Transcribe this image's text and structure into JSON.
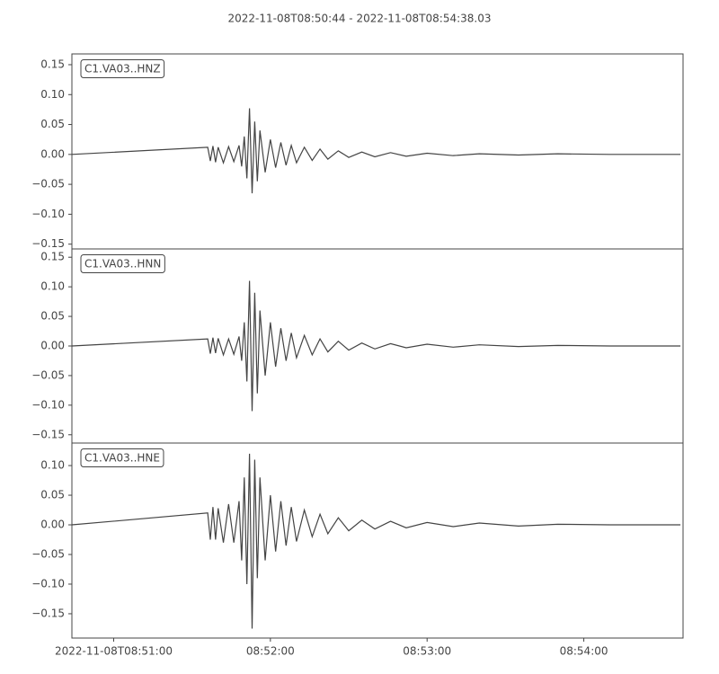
{
  "title": "2022-11-08T08:50:44  -  2022-11-08T08:54:38.03",
  "chart_data": [
    {
      "type": "line",
      "x": [
        "2022-11-08T08:50:44",
        "2022-11-08T08:51:36",
        "2022-11-08T08:51:37",
        "2022-11-08T08:51:38",
        "2022-11-08T08:51:39",
        "2022-11-08T08:51:40",
        "2022-11-08T08:51:42",
        "2022-11-08T08:51:44",
        "2022-11-08T08:51:46",
        "2022-11-08T08:51:48",
        "2022-11-08T08:51:49",
        "2022-11-08T08:51:50",
        "2022-11-08T08:51:51",
        "2022-11-08T08:51:52",
        "2022-11-08T08:51:53",
        "2022-11-08T08:51:54",
        "2022-11-08T08:51:55",
        "2022-11-08T08:51:56",
        "2022-11-08T08:51:58",
        "2022-11-08T08:52:00",
        "2022-11-08T08:52:02",
        "2022-11-08T08:52:04",
        "2022-11-08T08:52:06",
        "2022-11-08T08:52:08",
        "2022-11-08T08:52:10",
        "2022-11-08T08:52:13",
        "2022-11-08T08:52:16",
        "2022-11-08T08:52:19",
        "2022-11-08T08:52:22",
        "2022-11-08T08:52:26",
        "2022-11-08T08:52:30",
        "2022-11-08T08:52:35",
        "2022-11-08T08:52:40",
        "2022-11-08T08:52:46",
        "2022-11-08T08:52:52",
        "2022-11-08T08:53:00",
        "2022-11-08T08:53:10",
        "2022-11-08T08:53:20",
        "2022-11-08T08:53:35",
        "2022-11-08T08:53:50",
        "2022-11-08T08:54:10",
        "2022-11-08T08:54:37"
      ],
      "series": [
        {
          "name": "C1.VA03..HNZ",
          "color": "#444444",
          "values": [
            0,
            0.012,
            -0.011,
            0.014,
            -0.013,
            0.012,
            -0.014,
            0.013,
            -0.012,
            0.015,
            -0.02,
            0.03,
            -0.04,
            0.077,
            -0.065,
            0.055,
            -0.045,
            0.04,
            -0.03,
            0.025,
            -0.022,
            0.02,
            -0.018,
            0.015,
            -0.014,
            0.012,
            -0.01,
            0.009,
            -0.008,
            0.006,
            -0.005,
            0.004,
            -0.004,
            0.003,
            -0.003,
            0.002,
            -0.002,
            0.001,
            -0.001,
            0.001,
            0,
            0
          ]
        }
      ],
      "xlim": [
        "2022-11-08T08:50:44",
        "2022-11-08T08:54:38"
      ],
      "ylim": [
        -0.158,
        0.168
      ],
      "yticks": [
        {
          "value": -0.15,
          "label": "−0.15"
        },
        {
          "value": -0.1,
          "label": "−0.10"
        },
        {
          "value": -0.05,
          "label": "−0.05"
        },
        {
          "value": 0,
          "label": "0.00"
        },
        {
          "value": 0.05,
          "label": "0.05"
        },
        {
          "value": 0.1,
          "label": "0.10"
        },
        {
          "value": 0.15,
          "label": "0.15"
        }
      ]
    },
    {
      "type": "line",
      "x": [
        "2022-11-08T08:50:44",
        "2022-11-08T08:51:36",
        "2022-11-08T08:51:37",
        "2022-11-08T08:51:38",
        "2022-11-08T08:51:39",
        "2022-11-08T08:51:40",
        "2022-11-08T08:51:42",
        "2022-11-08T08:51:44",
        "2022-11-08T08:51:46",
        "2022-11-08T08:51:48",
        "2022-11-08T08:51:49",
        "2022-11-08T08:51:50",
        "2022-11-08T08:51:51",
        "2022-11-08T08:51:52",
        "2022-11-08T08:51:53",
        "2022-11-08T08:51:54",
        "2022-11-08T08:51:55",
        "2022-11-08T08:51:56",
        "2022-11-08T08:51:58",
        "2022-11-08T08:52:00",
        "2022-11-08T08:52:02",
        "2022-11-08T08:52:04",
        "2022-11-08T08:52:06",
        "2022-11-08T08:52:08",
        "2022-11-08T08:52:10",
        "2022-11-08T08:52:13",
        "2022-11-08T08:52:16",
        "2022-11-08T08:52:19",
        "2022-11-08T08:52:22",
        "2022-11-08T08:52:26",
        "2022-11-08T08:52:30",
        "2022-11-08T08:52:35",
        "2022-11-08T08:52:40",
        "2022-11-08T08:52:46",
        "2022-11-08T08:52:52",
        "2022-11-08T08:53:00",
        "2022-11-08T08:53:10",
        "2022-11-08T08:53:20",
        "2022-11-08T08:53:35",
        "2022-11-08T08:53:50",
        "2022-11-08T08:54:10",
        "2022-11-08T08:54:37"
      ],
      "series": [
        {
          "name": "C1.VA03..HNN",
          "color": "#444444",
          "values": [
            0,
            0.012,
            -0.013,
            0.014,
            -0.012,
            0.013,
            -0.015,
            0.012,
            -0.014,
            0.016,
            -0.025,
            0.04,
            -0.06,
            0.11,
            -0.11,
            0.09,
            -0.08,
            0.06,
            -0.05,
            0.04,
            -0.035,
            0.03,
            -0.025,
            0.022,
            -0.02,
            0.018,
            -0.015,
            0.012,
            -0.01,
            0.008,
            -0.007,
            0.005,
            -0.005,
            0.004,
            -0.003,
            0.003,
            -0.002,
            0.002,
            -0.001,
            0.001,
            0,
            0
          ]
        }
      ],
      "xlim": [
        "2022-11-08T08:50:44",
        "2022-11-08T08:54:38"
      ],
      "ylim": [
        -0.164,
        0.164
      ],
      "yticks": [
        {
          "value": -0.15,
          "label": "−0.15"
        },
        {
          "value": -0.1,
          "label": "−0.10"
        },
        {
          "value": -0.05,
          "label": "−0.05"
        },
        {
          "value": 0,
          "label": "0.00"
        },
        {
          "value": 0.05,
          "label": "0.05"
        },
        {
          "value": 0.1,
          "label": "0.10"
        },
        {
          "value": 0.15,
          "label": "0.15"
        }
      ]
    },
    {
      "type": "line",
      "x": [
        "2022-11-08T08:50:44",
        "2022-11-08T08:51:36",
        "2022-11-08T08:51:37",
        "2022-11-08T08:51:38",
        "2022-11-08T08:51:39",
        "2022-11-08T08:51:40",
        "2022-11-08T08:51:42",
        "2022-11-08T08:51:44",
        "2022-11-08T08:51:46",
        "2022-11-08T08:51:48",
        "2022-11-08T08:51:49",
        "2022-11-08T08:51:50",
        "2022-11-08T08:51:51",
        "2022-11-08T08:51:52",
        "2022-11-08T08:51:53",
        "2022-11-08T08:51:54",
        "2022-11-08T08:51:55",
        "2022-11-08T08:51:56",
        "2022-11-08T08:51:58",
        "2022-11-08T08:52:00",
        "2022-11-08T08:52:02",
        "2022-11-08T08:52:04",
        "2022-11-08T08:52:06",
        "2022-11-08T08:52:08",
        "2022-11-08T08:52:10",
        "2022-11-08T08:52:13",
        "2022-11-08T08:52:16",
        "2022-11-08T08:52:19",
        "2022-11-08T08:52:22",
        "2022-11-08T08:52:26",
        "2022-11-08T08:52:30",
        "2022-11-08T08:52:35",
        "2022-11-08T08:52:40",
        "2022-11-08T08:52:46",
        "2022-11-08T08:52:52",
        "2022-11-08T08:53:00",
        "2022-11-08T08:53:10",
        "2022-11-08T08:53:20",
        "2022-11-08T08:53:35",
        "2022-11-08T08:53:50",
        "2022-11-08T08:54:10",
        "2022-11-08T08:54:37"
      ],
      "series": [
        {
          "name": "C1.VA03..HNE",
          "color": "#444444",
          "values": [
            0,
            0.02,
            -0.025,
            0.03,
            -0.025,
            0.028,
            -0.03,
            0.035,
            -0.03,
            0.04,
            -0.06,
            0.08,
            -0.1,
            0.12,
            -0.175,
            0.11,
            -0.09,
            0.08,
            -0.06,
            0.05,
            -0.045,
            0.04,
            -0.035,
            0.03,
            -0.028,
            0.025,
            -0.02,
            0.018,
            -0.015,
            0.012,
            -0.01,
            0.008,
            -0.007,
            0.006,
            -0.005,
            0.004,
            -0.003,
            0.003,
            -0.002,
            0.001,
            0,
            0
          ]
        }
      ],
      "xlim": [
        "2022-11-08T08:50:44",
        "2022-11-08T08:54:38"
      ],
      "ylim": [
        -0.191,
        0.138
      ],
      "yticks": [
        {
          "value": -0.15,
          "label": "−0.15"
        },
        {
          "value": -0.1,
          "label": "−0.10"
        },
        {
          "value": -0.05,
          "label": "−0.05"
        },
        {
          "value": 0,
          "label": "0.00"
        },
        {
          "value": 0.05,
          "label": "0.05"
        },
        {
          "value": 0.1,
          "label": "0.10"
        }
      ],
      "xticks": [
        {
          "value": "2022-11-08T08:51:00",
          "label": "2022-11-08T08:51:00"
        },
        {
          "value": "2022-11-08T08:52:00",
          "label": "08:52:00"
        },
        {
          "value": "2022-11-08T08:53:00",
          "label": "08:53:00"
        },
        {
          "value": "2022-11-08T08:54:00",
          "label": "08:54:00"
        }
      ]
    }
  ]
}
